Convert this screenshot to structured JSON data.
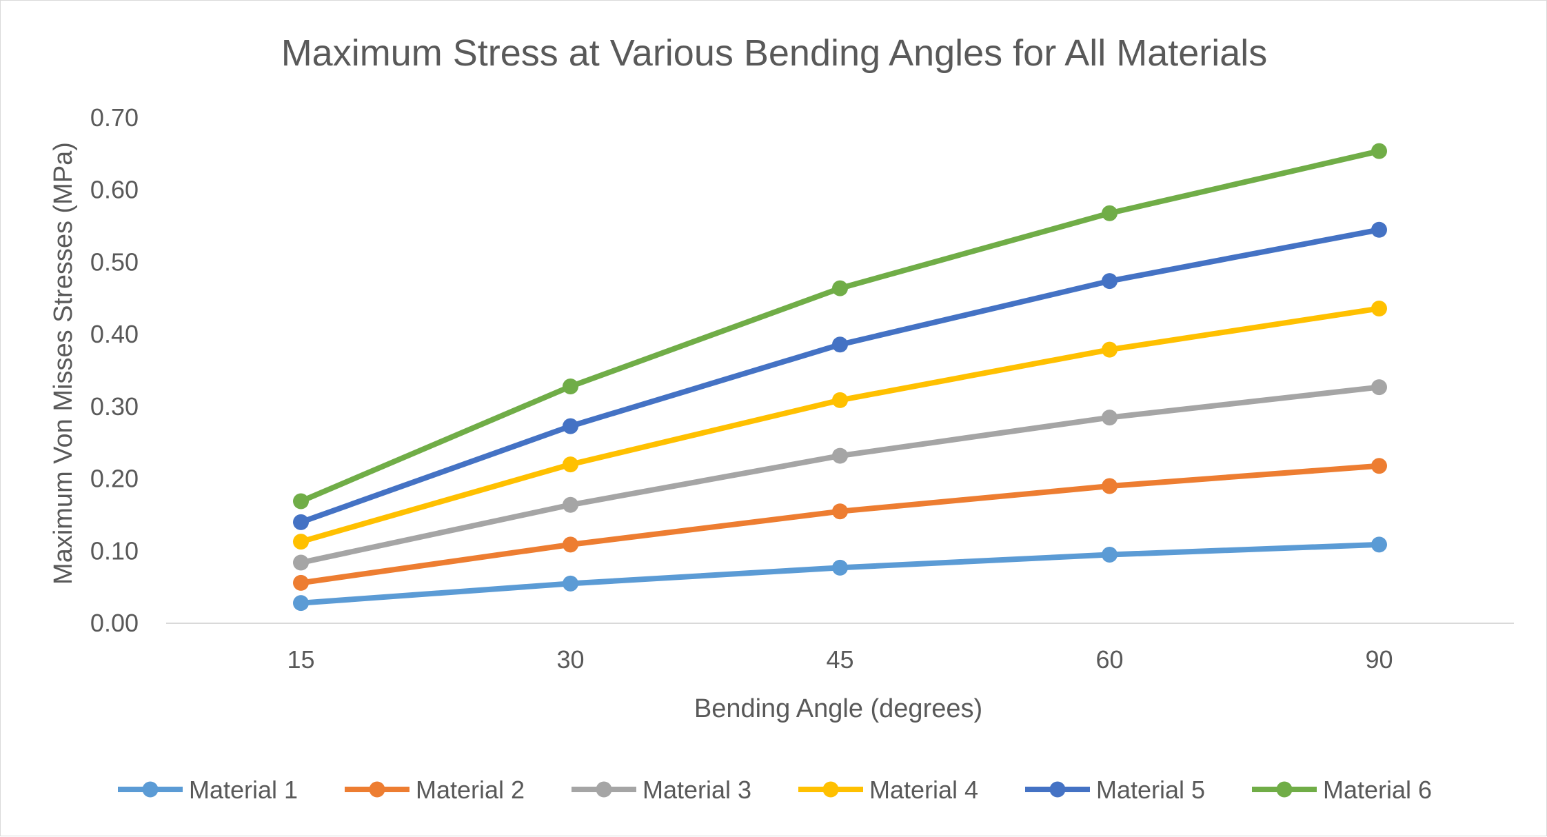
{
  "chart_data": {
    "type": "line",
    "title": "Maximum Stress at Various Bending Angles for All Materials",
    "xlabel": "Bending Angle (degrees)",
    "ylabel": "Maximum Von Misses Stresses (MPa)",
    "categories": [
      "15",
      "30",
      "45",
      "60",
      "90"
    ],
    "y_tick_labels": [
      "0.00",
      "0.10",
      "0.20",
      "0.30",
      "0.40",
      "0.50",
      "0.60",
      "0.70"
    ],
    "ylim": [
      0,
      0.7
    ],
    "grid": false,
    "legend_position": "bottom",
    "series": [
      {
        "name": "Material 1",
        "color": "#5B9BD5",
        "values": [
          0.028,
          0.055,
          0.077,
          0.095,
          0.109
        ]
      },
      {
        "name": "Material 2",
        "color": "#ED7D31",
        "values": [
          0.056,
          0.109,
          0.155,
          0.19,
          0.218
        ]
      },
      {
        "name": "Material 3",
        "color": "#A5A5A5",
        "values": [
          0.084,
          0.164,
          0.232,
          0.285,
          0.327
        ]
      },
      {
        "name": "Material 4",
        "color": "#FFC000",
        "values": [
          0.113,
          0.22,
          0.309,
          0.379,
          0.436
        ]
      },
      {
        "name": "Material 5",
        "color": "#4472C4",
        "values": [
          0.14,
          0.273,
          0.386,
          0.474,
          0.545
        ]
      },
      {
        "name": "Material 6",
        "color": "#70AD47",
        "values": [
          0.169,
          0.328,
          0.464,
          0.568,
          0.654
        ]
      }
    ]
  }
}
